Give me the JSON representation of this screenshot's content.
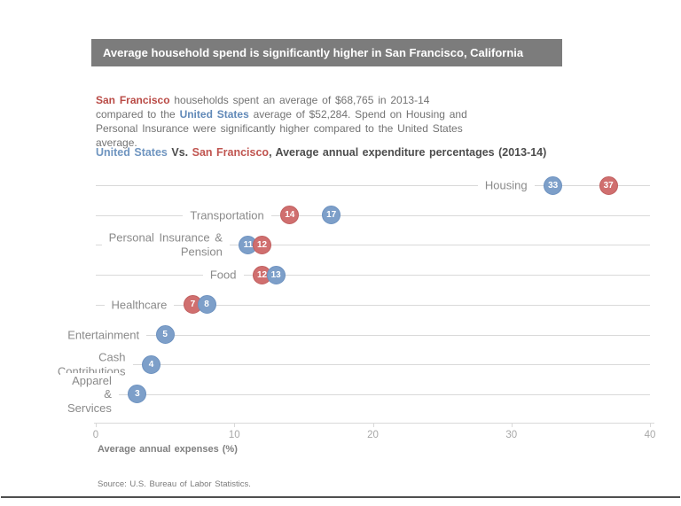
{
  "header": {
    "title": "Average household spend is significantly higher in San Francisco, California",
    "bar_color": "#7c7c7c"
  },
  "intro": {
    "sf_label": "San Francisco",
    "text_after_sf": " households spent an average of $68,765 in 2013-14 compared to the ",
    "us_label": "United States",
    "text_after_us": " average of $52,284. Spend on Housing and Personal Insurance were significantly higher compared to the United States average."
  },
  "chart_header": {
    "us_label": "United States",
    "vs_label": " Vs. ",
    "sf_label": "San Francisco",
    "rest": ", Average annual expenditure percentages (2013-14)"
  },
  "chart": {
    "xlabel": "Average annual expenses (%)",
    "xlim": [
      0,
      40
    ],
    "xticks": [
      0,
      10,
      20,
      30,
      40
    ],
    "row_start_y": 192,
    "row_step": 33.7,
    "rows": [
      {
        "label": "Housing",
        "dots": [
          {
            "series": "us",
            "value": 33
          },
          {
            "series": "sf",
            "value": 37
          }
        ]
      },
      {
        "label": "Transportation",
        "dots": [
          {
            "series": "sf",
            "value": 14
          },
          {
            "series": "us",
            "value": 17
          }
        ]
      },
      {
        "label": "Personal Insurance &\nPension",
        "dots": [
          {
            "series": "us",
            "value": 11
          },
          {
            "series": "sf",
            "value": 12
          }
        ]
      },
      {
        "label": "Food",
        "dots": [
          {
            "series": "sf",
            "value": 12
          },
          {
            "series": "us",
            "value": 13
          }
        ]
      },
      {
        "label": "Healthcare",
        "dots": [
          {
            "series": "sf",
            "value": 7
          },
          {
            "series": "us",
            "value": 8
          }
        ]
      },
      {
        "label": "Entertainment",
        "dots": [
          {
            "series": "us",
            "value": 5
          }
        ]
      },
      {
        "label": "Cash\nContributions",
        "dots": [
          {
            "series": "us",
            "value": 4
          }
        ]
      },
      {
        "label": "Apparel &\nServices",
        "dots": [
          {
            "series": "us",
            "value": 3
          }
        ]
      }
    ]
  },
  "chart_data": {
    "type": "scatter",
    "subtype": "dot-plot",
    "title": "United States Vs. San Francisco, Average annual expenditure percentages (2013-14)",
    "categories": [
      "Housing",
      "Transportation",
      "Personal Insurance & Pension",
      "Food",
      "Healthcare",
      "Entertainment",
      "Cash Contributions",
      "Apparel & Services"
    ],
    "series": [
      {
        "name": "United States",
        "color": "#7d9fc9",
        "values": [
          33,
          17,
          11,
          13,
          8,
          5,
          4,
          3
        ]
      },
      {
        "name": "San Francisco",
        "color": "#d06f6f",
        "values": [
          37,
          14,
          12,
          12,
          7,
          null,
          null,
          null
        ]
      }
    ],
    "xlabel": "Average annual expenses (%)",
    "xlim": [
      0,
      40
    ],
    "xticks": [
      0,
      10,
      20,
      30,
      40
    ],
    "grid": "horizontal-per-category",
    "legend_position": "inline-in-title",
    "data_labels": true
  },
  "footer": {
    "source": "Source: U.S. Bureau of Labor Statistics."
  },
  "colors": {
    "us_blue": "#7d9fc9",
    "sf_red": "#d06f6f",
    "us_text_blue": "#6189b8",
    "sf_text_red": "#b94a45",
    "title_bar_gray": "#7c7c7c",
    "grid_gray": "#d9d9d9"
  }
}
